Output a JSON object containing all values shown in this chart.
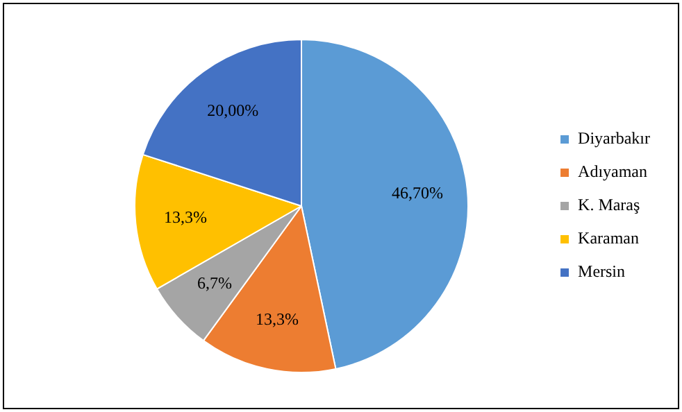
{
  "chart_data": {
    "type": "pie",
    "categories": [
      "Diyarbakır",
      "Adıyaman",
      "K. Maraş",
      "Karaman",
      "Mersin"
    ],
    "values": [
      46.7,
      13.3,
      6.7,
      13.3,
      20.0
    ],
    "value_labels": [
      "46,70%",
      "13,3%",
      "6,7%",
      "13,3%",
      "20,00%"
    ],
    "colors": [
      "#5b9bd5",
      "#ed7d31",
      "#a5a5a5",
      "#ffc000",
      "#4472c4"
    ],
    "legend": "right"
  }
}
